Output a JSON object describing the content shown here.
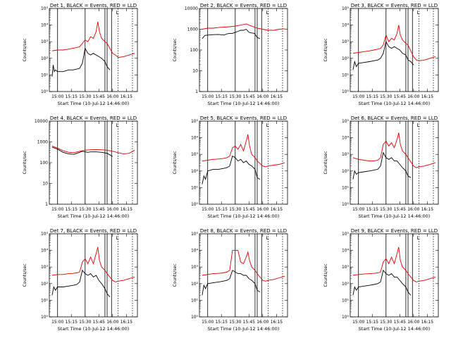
{
  "colors": {
    "events": "#000000",
    "lld": "#e00000",
    "axis": "#000000"
  },
  "common": {
    "ylabel": "Counts/sec",
    "xlabel": "Start Time (10-Jul-12 14:46:00)",
    "xticks": [
      "15:00",
      "15:15",
      "15:30",
      "15:45",
      "16:00",
      "16:15"
    ],
    "xlim": [
      14.85,
      16.45
    ],
    "solid_markers": [
      15.0,
      15.5,
      15.86,
      15.9,
      15.98
    ],
    "dotted_markers": [
      16.1,
      16.36
    ],
    "marker_tag": "L"
  },
  "chart_data": [
    {
      "type": "line",
      "title": "Det 1, BLACK = Events, RED = LLD",
      "scale": "log",
      "ylim": [
        0,
        5
      ],
      "yticks": [
        "10⁰",
        "10¹",
        "10²",
        "10³",
        "10⁴",
        "10⁵"
      ],
      "series": [
        {
          "name": "Events",
          "x": [
            14.9,
            14.92,
            14.94,
            14.96,
            15.0,
            15.1,
            15.2,
            15.28,
            15.35,
            15.4,
            15.45,
            15.5,
            15.55,
            15.6,
            15.65,
            15.7,
            15.75,
            15.8,
            15.86,
            15.9,
            15.95
          ],
          "y": [
            0.9,
            1.6,
            1.2,
            1.3,
            1.2,
            1.2,
            1.3,
            1.3,
            1.35,
            1.4,
            1.7,
            2.6,
            2.3,
            2.2,
            2.3,
            2.2,
            2.1,
            2.0,
            1.8,
            1.5,
            1.3
          ]
        },
        {
          "name": "LLD",
          "x": [
            14.9,
            15.0,
            15.1,
            15.2,
            15.28,
            15.35,
            15.4,
            15.45,
            15.5,
            15.55,
            15.6,
            15.65,
            15.7,
            15.73,
            15.76,
            15.8,
            15.86,
            15.9,
            16.0,
            16.05,
            16.1,
            16.2,
            16.3,
            16.4
          ],
          "y": [
            2.45,
            2.5,
            2.5,
            2.55,
            2.6,
            2.65,
            2.7,
            2.9,
            3.1,
            3.0,
            3.3,
            3.2,
            3.6,
            4.2,
            3.6,
            3.2,
            3.0,
            2.9,
            2.3,
            2.2,
            2.05,
            2.1,
            2.2,
            2.3
          ]
        }
      ]
    },
    {
      "type": "line",
      "title": "Det 2, BLACK = Events, RED = LLD",
      "scale": "log",
      "ylim": [
        0,
        4
      ],
      "yticks": [
        "1",
        "10",
        "100",
        "1000",
        "10000"
      ],
      "series": [
        {
          "name": "Events",
          "x": [
            14.9,
            14.95,
            15.0,
            15.1,
            15.2,
            15.3,
            15.35,
            15.4,
            15.45,
            15.5,
            15.55,
            15.6,
            15.65,
            15.7,
            15.75,
            15.8,
            15.85,
            15.9,
            15.95
          ],
          "y": [
            2.55,
            2.7,
            2.72,
            2.74,
            2.75,
            2.72,
            2.78,
            2.8,
            2.8,
            2.85,
            2.9,
            2.95,
            2.95,
            3.0,
            2.85,
            2.82,
            2.8,
            2.6,
            2.55
          ]
        },
        {
          "name": "LLD",
          "x": [
            14.9,
            15.0,
            15.1,
            15.2,
            15.3,
            15.4,
            15.5,
            15.6,
            15.7,
            15.8,
            15.9,
            16.0,
            16.1,
            16.2,
            16.3,
            16.4
          ],
          "y": [
            3.0,
            3.05,
            3.05,
            3.08,
            3.1,
            3.12,
            3.15,
            3.2,
            3.25,
            3.15,
            3.05,
            3.0,
            2.95,
            2.95,
            3.0,
            3.02
          ]
        }
      ]
    },
    {
      "type": "line",
      "title": "Det 3, BLACK = Events, RED = LLD",
      "scale": "log",
      "ylim": [
        0,
        5
      ],
      "yticks": [
        "10⁰",
        "10¹",
        "10²",
        "10³",
        "10⁴",
        "10⁵"
      ],
      "series": [
        {
          "name": "Events",
          "x": [
            14.9,
            14.93,
            14.96,
            15.0,
            15.1,
            15.2,
            15.28,
            15.35,
            15.4,
            15.45,
            15.5,
            15.55,
            15.6,
            15.65,
            15.7,
            15.75,
            15.8,
            15.86,
            15.9,
            15.95,
            16.0
          ],
          "y": [
            1.3,
            1.8,
            1.5,
            1.7,
            1.75,
            1.8,
            1.85,
            1.9,
            2.0,
            2.3,
            3.0,
            2.7,
            2.6,
            2.7,
            2.6,
            2.5,
            2.3,
            2.2,
            1.9,
            1.8,
            1.6
          ]
        },
        {
          "name": "LLD",
          "x": [
            14.9,
            15.0,
            15.1,
            15.2,
            15.28,
            15.35,
            15.4,
            15.45,
            15.5,
            15.55,
            15.6,
            15.65,
            15.7,
            15.73,
            15.76,
            15.8,
            15.86,
            15.9,
            16.0,
            16.05,
            16.1,
            16.2,
            16.3,
            16.4
          ],
          "y": [
            2.3,
            2.35,
            2.4,
            2.45,
            2.5,
            2.55,
            2.6,
            2.8,
            3.4,
            3.0,
            3.2,
            3.1,
            3.5,
            4.0,
            3.4,
            3.1,
            2.9,
            2.8,
            2.1,
            1.9,
            1.85,
            1.9,
            2.0,
            2.1
          ]
        }
      ]
    },
    {
      "type": "line",
      "title": "Det 4, BLACK = Events, RED = LLD",
      "scale": "log",
      "ylim": [
        0,
        4
      ],
      "yticks": [
        "1",
        "10",
        "100",
        "1000",
        "10000"
      ],
      "series": [
        {
          "name": "Events",
          "x": [
            14.9,
            15.0,
            15.1,
            15.2,
            15.3,
            15.35,
            15.4,
            15.45,
            15.5,
            15.55,
            15.6,
            15.7,
            15.8,
            15.9,
            16.0
          ],
          "y": [
            2.75,
            2.65,
            2.5,
            2.42,
            2.4,
            2.45,
            2.5,
            2.55,
            2.52,
            2.5,
            2.52,
            2.52,
            2.5,
            2.45,
            2.3
          ]
        },
        {
          "name": "LLD",
          "x": [
            14.9,
            15.0,
            15.1,
            15.2,
            15.3,
            15.4,
            15.5,
            15.6,
            15.7,
            15.8,
            15.9,
            16.0,
            16.1,
            16.2,
            16.3,
            16.4
          ],
          "y": [
            2.8,
            2.7,
            2.58,
            2.5,
            2.48,
            2.55,
            2.6,
            2.62,
            2.63,
            2.62,
            2.6,
            2.55,
            2.48,
            2.42,
            2.45,
            2.6
          ]
        }
      ]
    },
    {
      "type": "line",
      "title": "Det 5, BLACK = Events, RED = LLD",
      "scale": "log",
      "ylim": [
        0,
        5
      ],
      "yticks": [
        "10⁰",
        "10¹",
        "10²",
        "10³",
        "10⁴",
        "10⁵"
      ],
      "series": [
        {
          "name": "Events",
          "x": [
            14.9,
            14.93,
            14.96,
            15.0,
            15.1,
            15.2,
            15.28,
            15.35,
            15.4,
            15.45,
            15.5,
            15.55,
            15.6,
            15.65,
            15.7,
            15.75,
            15.8,
            15.86,
            15.9,
            15.95
          ],
          "y": [
            1.2,
            1.7,
            1.5,
            2.0,
            2.1,
            2.1,
            2.15,
            2.2,
            2.3,
            2.9,
            2.8,
            2.6,
            2.7,
            2.5,
            2.6,
            2.4,
            2.3,
            2.1,
            1.6,
            1.5
          ]
        },
        {
          "name": "LLD",
          "x": [
            14.9,
            15.0,
            15.1,
            15.2,
            15.28,
            15.35,
            15.4,
            15.45,
            15.5,
            15.55,
            15.6,
            15.65,
            15.7,
            15.73,
            15.76,
            15.8,
            15.86,
            15.9,
            16.0,
            16.05,
            16.1,
            16.2,
            16.3,
            16.4
          ],
          "y": [
            2.6,
            2.65,
            2.7,
            2.72,
            2.75,
            2.8,
            2.9,
            3.4,
            3.5,
            3.3,
            3.6,
            3.2,
            3.8,
            4.2,
            3.5,
            3.0,
            2.8,
            2.6,
            2.3,
            2.25,
            2.3,
            2.35,
            2.4,
            2.5
          ]
        }
      ]
    },
    {
      "type": "line",
      "title": "Det 6, BLACK = Events, RED = LLD",
      "scale": "log",
      "ylim": [
        0,
        5
      ],
      "yticks": [
        "10⁰",
        "10¹",
        "10²",
        "10³",
        "10⁴",
        "10⁵"
      ],
      "series": [
        {
          "name": "Events",
          "x": [
            14.9,
            14.93,
            14.96,
            15.0,
            15.1,
            15.2,
            15.28,
            15.35,
            15.4,
            15.45,
            15.5,
            15.55,
            15.6,
            15.65,
            15.7,
            15.75,
            15.8,
            15.86,
            15.9,
            15.95
          ],
          "y": [
            1.5,
            2.0,
            1.8,
            1.9,
            1.95,
            2.0,
            2.05,
            2.1,
            2.3,
            3.1,
            2.8,
            2.7,
            2.8,
            2.6,
            2.6,
            2.4,
            2.2,
            2.0,
            1.7,
            1.6
          ]
        },
        {
          "name": "LLD",
          "x": [
            14.9,
            15.0,
            15.1,
            15.2,
            15.28,
            15.35,
            15.4,
            15.45,
            15.5,
            15.55,
            15.6,
            15.65,
            15.7,
            15.73,
            15.76,
            15.8,
            15.86,
            15.9,
            16.0,
            16.05,
            16.1,
            16.2,
            16.3,
            16.4
          ],
          "y": [
            2.8,
            2.7,
            2.65,
            2.6,
            2.6,
            2.65,
            2.8,
            3.6,
            3.8,
            3.5,
            3.7,
            3.4,
            3.9,
            4.3,
            3.6,
            3.2,
            3.0,
            2.8,
            2.3,
            2.2,
            2.25,
            2.3,
            2.4,
            2.5
          ]
        }
      ]
    },
    {
      "type": "line",
      "title": "Det 7, BLACK = Events, RED = LLD",
      "scale": "log",
      "ylim": [
        0,
        5
      ],
      "yticks": [
        "10⁰",
        "10¹",
        "10²",
        "10³",
        "10⁴",
        "10⁵"
      ],
      "series": [
        {
          "name": "Events",
          "x": [
            14.9,
            14.93,
            14.96,
            15.0,
            15.1,
            15.2,
            15.28,
            15.35,
            15.4,
            15.45,
            15.5,
            15.55,
            15.6,
            15.65,
            15.7,
            15.75,
            15.8,
            15.86,
            15.9,
            15.95
          ],
          "y": [
            1.3,
            1.8,
            1.6,
            1.8,
            1.8,
            1.85,
            1.9,
            1.95,
            2.1,
            2.8,
            2.6,
            2.5,
            2.6,
            2.4,
            2.5,
            2.2,
            2.0,
            1.7,
            1.4,
            1.2
          ]
        },
        {
          "name": "LLD",
          "x": [
            14.9,
            15.0,
            15.1,
            15.2,
            15.28,
            15.35,
            15.4,
            15.45,
            15.5,
            15.55,
            15.6,
            15.65,
            15.7,
            15.73,
            15.76,
            15.8,
            15.86,
            15.9,
            16.0,
            16.05,
            16.1,
            16.2,
            16.3,
            16.4
          ],
          "y": [
            2.5,
            2.55,
            2.55,
            2.6,
            2.62,
            2.65,
            2.7,
            3.3,
            3.5,
            3.2,
            3.6,
            3.2,
            3.8,
            4.2,
            3.4,
            3.0,
            2.8,
            2.6,
            2.2,
            2.1,
            2.15,
            2.2,
            2.3,
            2.4
          ]
        }
      ]
    },
    {
      "type": "line",
      "title": "Det 8, BLACK = Events, RED = LLD",
      "scale": "log",
      "ylim": [
        0,
        5
      ],
      "yticks": [
        "10⁰",
        "10¹",
        "10²",
        "10³",
        "10⁴",
        "10⁵"
      ],
      "series": [
        {
          "name": "Events",
          "x": [
            14.9,
            14.93,
            14.96,
            15.0,
            15.1,
            15.2,
            15.28,
            15.35,
            15.4,
            15.45,
            15.5,
            15.55,
            15.6,
            15.65,
            15.7,
            15.75,
            15.8,
            15.86,
            15.9,
            15.95
          ],
          "y": [
            1.3,
            1.9,
            1.7,
            2.0,
            2.05,
            2.1,
            2.15,
            2.2,
            2.3,
            2.8,
            2.7,
            2.6,
            2.6,
            2.5,
            2.5,
            2.3,
            2.2,
            2.0,
            1.6,
            1.5
          ]
        },
        {
          "name": "LLD",
          "x": [
            14.9,
            15.0,
            15.1,
            15.2,
            15.28,
            15.35,
            15.4,
            15.45,
            15.5,
            15.55,
            15.6,
            15.65,
            15.7,
            15.73,
            15.76,
            15.8,
            15.86,
            15.9,
            16.0,
            16.05,
            16.1,
            16.2,
            16.3,
            16.4
          ],
          "y": [
            2.5,
            2.55,
            2.6,
            2.62,
            2.65,
            2.7,
            2.8,
            4.0,
            4.0,
            4.0,
            3.3,
            3.2,
            3.6,
            3.9,
            3.4,
            3.0,
            2.8,
            2.6,
            2.2,
            2.15,
            2.2,
            2.25,
            2.35,
            2.45
          ]
        }
      ]
    },
    {
      "type": "line",
      "title": "Det 9, BLACK = Events, RED = LLD",
      "scale": "log",
      "ylim": [
        0,
        5
      ],
      "yticks": [
        "10⁰",
        "10¹",
        "10²",
        "10³",
        "10⁴",
        "10⁵"
      ],
      "series": [
        {
          "name": "Events",
          "x": [
            14.9,
            14.93,
            14.96,
            15.0,
            15.1,
            15.2,
            15.28,
            15.35,
            15.4,
            15.45,
            15.5,
            15.55,
            15.6,
            15.65,
            15.7,
            15.75,
            15.8,
            15.86,
            15.9,
            15.95
          ],
          "y": [
            1.3,
            1.8,
            1.6,
            1.8,
            1.85,
            1.9,
            1.95,
            2.0,
            2.1,
            2.8,
            2.6,
            2.5,
            2.6,
            2.4,
            2.4,
            2.2,
            2.0,
            1.8,
            1.5,
            1.3
          ]
        },
        {
          "name": "LLD",
          "x": [
            14.9,
            15.0,
            15.1,
            15.2,
            15.28,
            15.35,
            15.4,
            15.45,
            15.5,
            15.55,
            15.6,
            15.65,
            15.7,
            15.73,
            15.76,
            15.8,
            15.86,
            15.9,
            16.0,
            16.05,
            16.1,
            16.2,
            16.3,
            16.4
          ],
          "y": [
            2.5,
            2.55,
            2.58,
            2.6,
            2.62,
            2.65,
            2.7,
            3.3,
            3.5,
            3.2,
            3.6,
            3.2,
            3.8,
            4.2,
            3.4,
            3.0,
            2.8,
            2.6,
            2.2,
            2.1,
            2.15,
            2.2,
            2.3,
            2.4
          ]
        }
      ]
    }
  ]
}
